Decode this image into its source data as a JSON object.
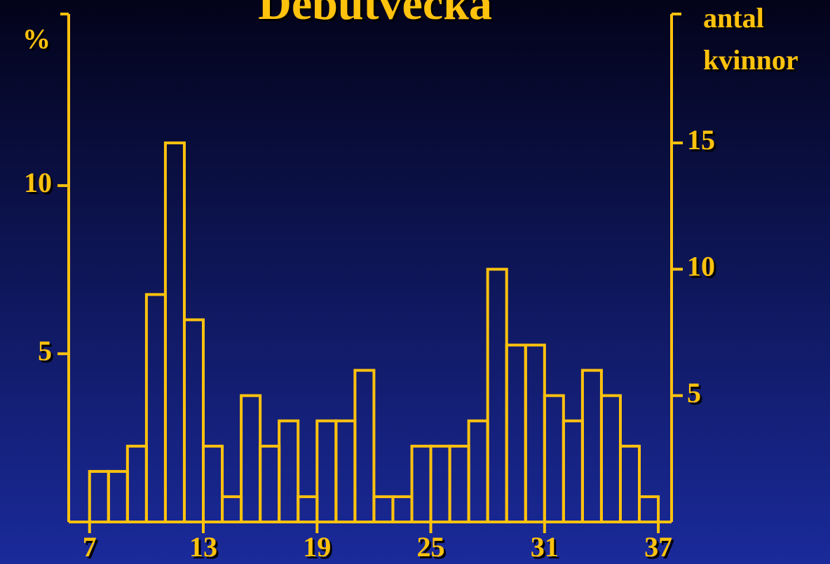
{
  "chart_data": {
    "type": "histogram",
    "title": "Debutvecka",
    "ylabel": "%",
    "y2label": [
      "antal",
      "kvinnor"
    ],
    "bins": [
      7,
      8,
      9,
      10,
      11,
      12,
      13,
      14,
      15,
      16,
      17,
      18,
      19,
      20,
      21,
      22,
      23,
      24,
      25,
      26,
      27,
      28,
      29,
      30,
      31,
      32,
      33,
      34,
      35,
      36,
      37
    ],
    "series": [
      {
        "color": "#ffc20e",
        "axis": "y2",
        "values": [
          2,
          2,
          3,
          9,
          15,
          8,
          3,
          1,
          5,
          3,
          4,
          1,
          4,
          4,
          6,
          1,
          1,
          3,
          3,
          3,
          4,
          10,
          7,
          7,
          5,
          4,
          6,
          5,
          3,
          1
        ]
      }
    ],
    "xlim": [
      5.9,
      37.7
    ],
    "xticks": [
      7,
      13,
      19,
      25,
      31,
      37
    ],
    "ylim": [
      0,
      15.1
    ],
    "yticks": [
      5,
      10
    ],
    "y2lim": [
      0,
      20.1
    ],
    "y2ticks": [
      5,
      10,
      15
    ]
  }
}
